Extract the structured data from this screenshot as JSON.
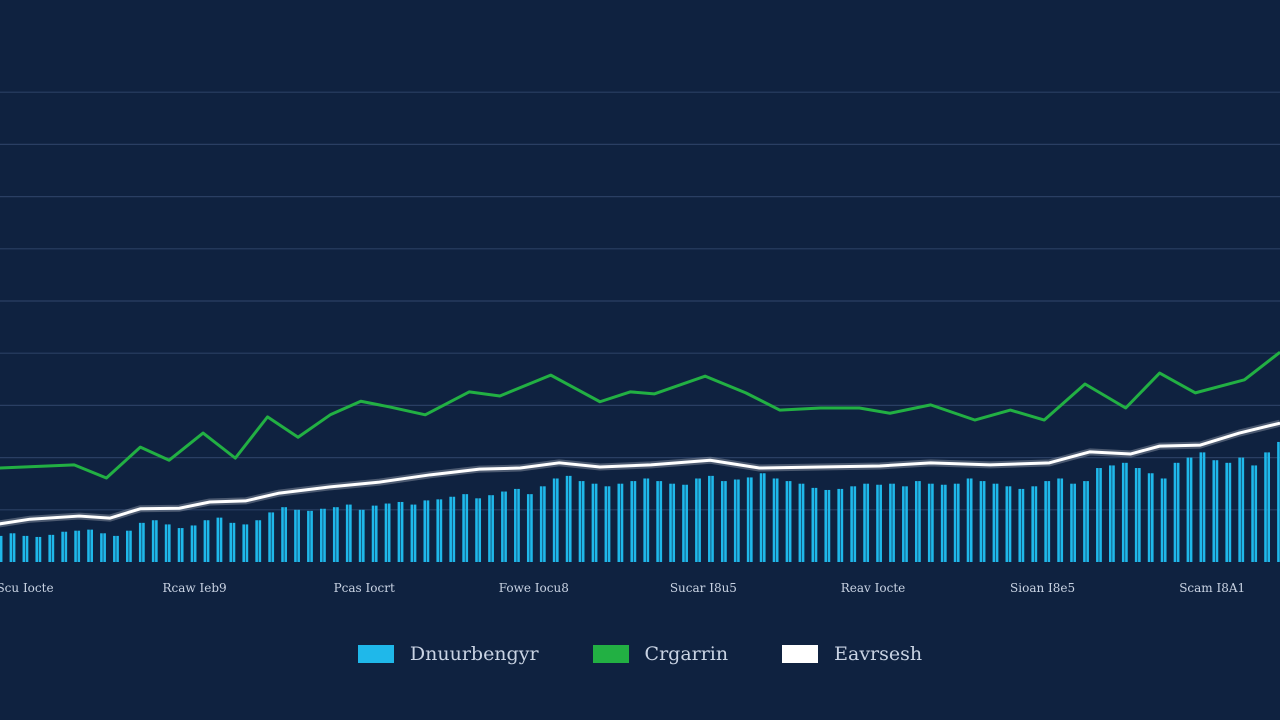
{
  "chart_data": {
    "type": "bar+line",
    "title": "",
    "xlabel": "",
    "ylabel": "",
    "grid": true,
    "legend_placement": "bottom",
    "colors": {
      "background": "#0f2240",
      "grid": "#2a3f63",
      "bars": "#1fb8ea",
      "green": "#22b043",
      "white": "#ffffff"
    },
    "x_ticks": [
      "Scu Iocte",
      "Rcaw Ieb9",
      "Pcas Iocrt",
      "Fowe Iocu8",
      "Sucar I8u5",
      "Reav Iocte",
      "Sioan I8e5",
      "Scam I8A1"
    ],
    "xlim": [
      -0.15,
      7.4
    ],
    "ylim": [
      0,
      9
    ],
    "legend": [
      "Dnuurbengyr",
      "Crgarrin",
      "Eavrsesh"
    ],
    "bars": {
      "name": "Dnuurbengyr",
      "x_start": -0.15,
      "x_end": 7.4,
      "values": [
        0.5,
        0.55,
        0.5,
        0.48,
        0.52,
        0.58,
        0.6,
        0.62,
        0.55,
        0.5,
        0.6,
        0.75,
        0.8,
        0.72,
        0.65,
        0.7,
        0.8,
        0.85,
        0.75,
        0.72,
        0.8,
        0.95,
        1.05,
        1.0,
        0.98,
        1.02,
        1.05,
        1.1,
        1.0,
        1.08,
        1.12,
        1.15,
        1.1,
        1.18,
        1.2,
        1.25,
        1.3,
        1.22,
        1.28,
        1.35,
        1.4,
        1.3,
        1.45,
        1.6,
        1.65,
        1.55,
        1.5,
        1.45,
        1.5,
        1.55,
        1.6,
        1.55,
        1.5,
        1.48,
        1.6,
        1.65,
        1.55,
        1.58,
        1.62,
        1.7,
        1.6,
        1.55,
        1.5,
        1.42,
        1.38,
        1.4,
        1.45,
        1.5,
        1.48,
        1.5,
        1.45,
        1.55,
        1.5,
        1.48,
        1.5,
        1.6,
        1.55,
        1.5,
        1.45,
        1.4,
        1.45,
        1.55,
        1.6,
        1.5,
        1.55,
        1.8,
        1.85,
        1.9,
        1.8,
        1.7,
        1.6,
        1.9,
        2.0,
        2.1,
        1.95,
        1.9,
        2.0,
        1.85,
        2.1,
        2.3
      ]
    },
    "series": [
      {
        "name": "Crgarrin",
        "color": "#22b043",
        "x": [
          -0.15,
          0.29,
          0.48,
          0.68,
          0.85,
          1.05,
          1.24,
          1.43,
          1.61,
          1.8,
          1.98,
          2.15,
          2.36,
          2.62,
          2.8,
          3.1,
          3.39,
          3.57,
          3.71,
          4.01,
          4.25,
          4.45,
          4.69,
          4.92,
          5.1,
          5.34,
          5.6,
          5.81,
          6.01,
          6.25,
          6.49,
          6.69,
          6.9,
          7.19,
          7.4
        ],
        "y": [
          1.8,
          1.86,
          1.61,
          2.2,
          1.95,
          2.47,
          1.99,
          2.78,
          2.39,
          2.82,
          3.08,
          2.97,
          2.82,
          3.26,
          3.18,
          3.58,
          3.07,
          3.26,
          3.22,
          3.56,
          3.24,
          2.91,
          2.95,
          2.95,
          2.85,
          3.01,
          2.72,
          2.91,
          2.72,
          3.41,
          2.95,
          3.62,
          3.24,
          3.49,
          4.02
        ]
      },
      {
        "name": "Eavrsesh",
        "color": "#ffffff",
        "x": [
          -0.15,
          0.03,
          0.32,
          0.5,
          0.68,
          0.91,
          1.09,
          1.3,
          1.5,
          1.8,
          2.09,
          2.39,
          2.68,
          2.92,
          3.15,
          3.39,
          3.69,
          4.04,
          4.33,
          4.69,
          5.04,
          5.34,
          5.69,
          6.04,
          6.28,
          6.52,
          6.69,
          6.93,
          7.16,
          7.4
        ],
        "y": [
          0.73,
          0.82,
          0.88,
          0.84,
          1.02,
          1.03,
          1.15,
          1.17,
          1.32,
          1.44,
          1.53,
          1.67,
          1.78,
          1.8,
          1.9,
          1.82,
          1.86,
          1.95,
          1.8,
          1.82,
          1.84,
          1.9,
          1.86,
          1.9,
          2.11,
          2.07,
          2.22,
          2.24,
          2.47,
          2.66
        ]
      }
    ]
  }
}
